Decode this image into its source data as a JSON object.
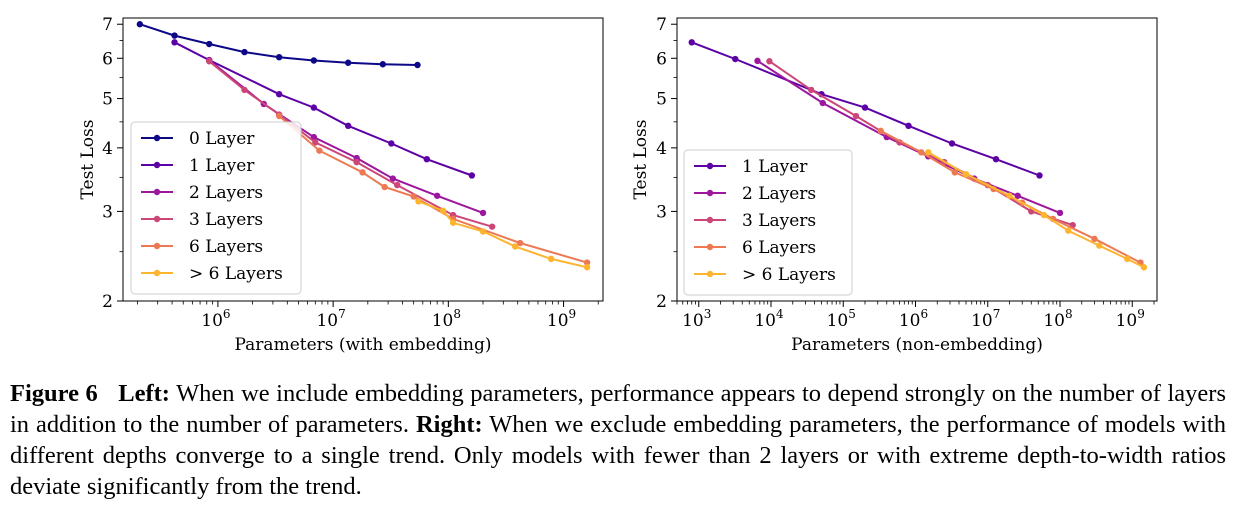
{
  "chart_data": [
    {
      "type": "line",
      "xlabel": "Parameters (with embedding)",
      "ylabel": "Test Loss",
      "xscale": "log",
      "yscale": "log",
      "xlim": [
        150000,
        2200000000
      ],
      "ylim": [
        2,
        7.2
      ],
      "xticks": [
        {
          "v": 1000000,
          "e": "6"
        },
        {
          "v": 10000000,
          "e": "7"
        },
        {
          "v": 100000000,
          "e": "8"
        },
        {
          "v": 1000000000,
          "e": "9"
        }
      ],
      "yticks": [
        2,
        3,
        4,
        5,
        6,
        7
      ],
      "grid": false,
      "legend_position": "lower-left",
      "series": [
        {
          "name": "0 Layer",
          "color": "#0d0887",
          "points": [
            [
              210000,
              7.0
            ],
            [
              420000,
              6.65
            ],
            [
              840000,
              6.4
            ],
            [
              1700000,
              6.17
            ],
            [
              3400000,
              6.03
            ],
            [
              6800000,
              5.94
            ],
            [
              13500000,
              5.88
            ],
            [
              27000000,
              5.84
            ],
            [
              54000000,
              5.82
            ]
          ]
        },
        {
          "name": "1 Layer",
          "color": "#5c01a6",
          "points": [
            [
              420000,
              6.45
            ],
            [
              840000,
              5.95
            ],
            [
              3400000,
              5.1
            ],
            [
              6800000,
              4.8
            ],
            [
              13500000,
              4.42
            ],
            [
              32000000,
              4.08
            ],
            [
              65000000,
              3.8
            ],
            [
              160000000,
              3.53
            ]
          ]
        },
        {
          "name": "2 Layers",
          "color": "#9c179e",
          "points": [
            [
              840000,
              5.95
            ],
            [
              2500000,
              4.88
            ],
            [
              6800000,
              4.2
            ],
            [
              16000000,
              3.82
            ],
            [
              33000000,
              3.48
            ],
            [
              80000000,
              3.22
            ],
            [
              200000000,
              2.98
            ]
          ]
        },
        {
          "name": "3 Layers",
          "color": "#cc4778",
          "points": [
            [
              840000,
              5.92
            ],
            [
              1700000,
              5.2
            ],
            [
              3400000,
              4.65
            ],
            [
              7000000,
              4.1
            ],
            [
              16000000,
              3.75
            ],
            [
              36000000,
              3.38
            ],
            [
              110000000,
              2.95
            ],
            [
              240000000,
              2.8
            ]
          ]
        },
        {
          "name": "6 Layers",
          "color": "#ed7953",
          "points": [
            [
              3400000,
              4.62
            ],
            [
              7600000,
              3.95
            ],
            [
              18000000,
              3.58
            ],
            [
              28000000,
              3.35
            ],
            [
              50000000,
              3.21
            ],
            [
              110000000,
              2.9
            ],
            [
              420000000,
              2.6
            ],
            [
              1600000000,
              2.38
            ]
          ]
        },
        {
          "name": "> 6 Layers",
          "color": "#fdb42f",
          "points": [
            [
              55000000,
              3.14
            ],
            [
              90000000,
              3.01
            ],
            [
              110000000,
              2.85
            ],
            [
              200000000,
              2.74
            ],
            [
              380000000,
              2.56
            ],
            [
              780000000,
              2.42
            ],
            [
              1600000000,
              2.33
            ]
          ]
        }
      ]
    },
    {
      "type": "line",
      "xlabel": "Parameters (non-embedding)",
      "ylabel": "Test Loss",
      "xscale": "log",
      "yscale": "log",
      "xlim": [
        500,
        2200000000
      ],
      "ylim": [
        2,
        7.2
      ],
      "xticks": [
        {
          "v": 1000,
          "e": "3"
        },
        {
          "v": 10000,
          "e": "4"
        },
        {
          "v": 100000,
          "e": "5"
        },
        {
          "v": 1000000,
          "e": "6"
        },
        {
          "v": 10000000,
          "e": "7"
        },
        {
          "v": 100000000,
          "e": "8"
        },
        {
          "v": 1000000000,
          "e": "9"
        }
      ],
      "yticks": [
        2,
        3,
        4,
        5,
        6,
        7
      ],
      "grid": false,
      "legend_position": "lower-left",
      "series": [
        {
          "name": "1 Layer",
          "color": "#5c01a6",
          "points": [
            [
              800,
              6.45
            ],
            [
              3200,
              5.98
            ],
            [
              50000,
              5.1
            ],
            [
              200000,
              4.8
            ],
            [
              800000,
              4.42
            ],
            [
              3200000,
              4.08
            ],
            [
              13000000,
              3.8
            ],
            [
              52000000,
              3.53
            ]
          ]
        },
        {
          "name": "2 Layers",
          "color": "#9c179e",
          "points": [
            [
              6500,
              5.93
            ],
            [
              52000,
              4.9
            ],
            [
              400000,
              4.2
            ],
            [
              1500000,
              3.85
            ],
            [
              6500000,
              3.48
            ],
            [
              26000000,
              3.22
            ],
            [
              100000000,
              2.98
            ]
          ]
        },
        {
          "name": "3 Layers",
          "color": "#cc4778",
          "points": [
            [
              9500,
              5.92
            ],
            [
              36000,
              5.2
            ],
            [
              150000,
              4.62
            ],
            [
              600000,
              4.1
            ],
            [
              2500000,
              3.75
            ],
            [
              10000000,
              3.38
            ],
            [
              40000000,
              3.0
            ],
            [
              150000000,
              2.82
            ]
          ]
        },
        {
          "name": "6 Layers",
          "color": "#ed7953",
          "points": [
            [
              330000,
              4.32
            ],
            [
              1200000,
              3.92
            ],
            [
              3500000,
              3.58
            ],
            [
              12000000,
              3.32
            ],
            [
              30000000,
              3.12
            ],
            [
              80000000,
              2.9
            ],
            [
              300000000,
              2.65
            ],
            [
              1300000000,
              2.38
            ]
          ]
        },
        {
          "name": "> 6 Layers",
          "color": "#fdb42f",
          "points": [
            [
              1500000,
              3.92
            ],
            [
              5000000,
              3.55
            ],
            [
              20000000,
              3.22
            ],
            [
              60000000,
              2.95
            ],
            [
              130000000,
              2.75
            ],
            [
              350000000,
              2.57
            ],
            [
              850000000,
              2.42
            ],
            [
              1450000000,
              2.33
            ]
          ]
        }
      ]
    }
  ],
  "caption": {
    "label": "Figure 6",
    "left_head": "Left:",
    "left_text": "When we include embedding parameters, performance appears to depend strongly on the number of layers in addition to the number of parameters.",
    "right_head": "Right:",
    "right_text": "When we exclude embedding parameters, the performance of models with different depths converge to a single trend. Only models with fewer than 2 layers or with extreme depth-to-width ratios deviate significantly from the trend."
  }
}
